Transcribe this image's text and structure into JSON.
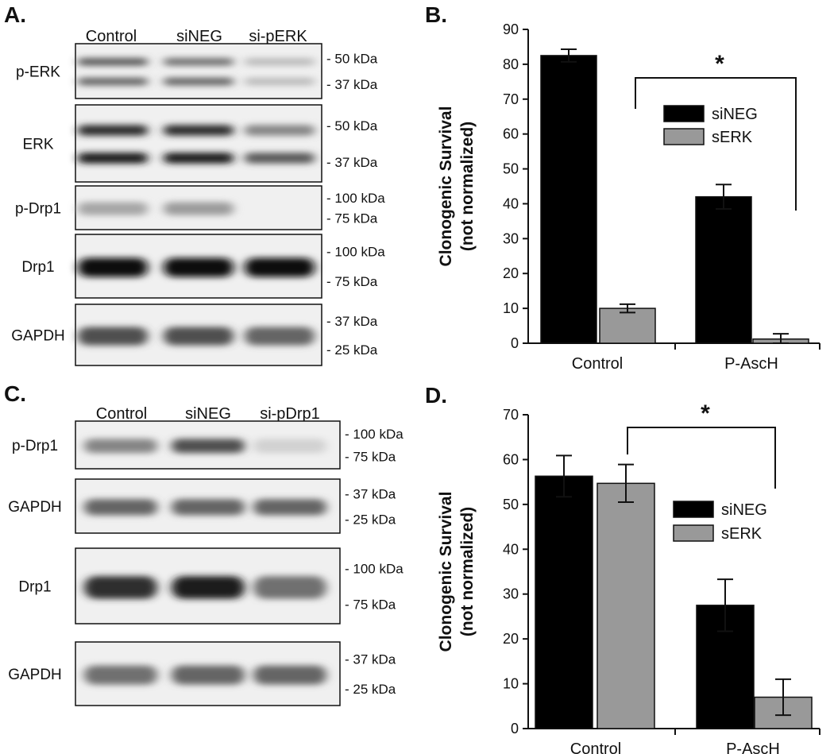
{
  "panels": {
    "A": {
      "letter": "A.",
      "lanes": [
        "Control",
        "siNEG",
        "si-pERK"
      ],
      "blots": [
        {
          "label": "p-ERK",
          "markers": [
            "- 50 kDa",
            "- 37 kDa"
          ],
          "bands": [
            [
              0.65,
              0.6
            ],
            [
              0.55,
              0.6
            ],
            [
              0.2,
              0.2
            ]
          ]
        },
        {
          "label": "ERK",
          "markers": [
            "- 50 kDa",
            "- 37 kDa"
          ],
          "bands": [
            [
              0.85,
              0.95
            ],
            [
              0.85,
              0.95
            ],
            [
              0.45,
              0.65
            ]
          ]
        },
        {
          "label": "p-Drp1",
          "markers": [
            "- 100 kDa",
            "- 75 kDa"
          ],
          "bands": [
            [
              0.3
            ],
            [
              0.35
            ],
            [
              0.0
            ]
          ]
        },
        {
          "label": "Drp1",
          "markers": [
            "- 100 kDa",
            "- 75 kDa"
          ],
          "bands": [
            [
              1.0
            ],
            [
              1.0
            ],
            [
              1.0
            ]
          ]
        },
        {
          "label": "GAPDH",
          "markers": [
            "- 37 kDa",
            "- 25 kDa"
          ],
          "bands": [
            [
              0.7
            ],
            [
              0.7
            ],
            [
              0.6
            ]
          ]
        }
      ]
    },
    "B": {
      "letter": "B.",
      "ylabel_line1": "Clonogenic Survival",
      "ylabel_line2": "(not normalized)",
      "significance": "*",
      "legend": [
        {
          "name": "siNEG",
          "color": "#000000"
        },
        {
          "name": "sERK",
          "color": "#999999"
        }
      ]
    },
    "C": {
      "letter": "C.",
      "lanes": [
        "Control",
        "siNEG",
        "si-pDrp1"
      ],
      "blots": [
        {
          "label": "p-Drp1",
          "markers": [
            "- 100 kDa",
            "- 75 kDa"
          ],
          "bands": [
            [
              0.45
            ],
            [
              0.7
            ],
            [
              0.1
            ]
          ]
        },
        {
          "label": "GAPDH",
          "markers": [
            "- 37 kDa",
            "- 25 kDa"
          ],
          "bands": [
            [
              0.6
            ],
            [
              0.6
            ],
            [
              0.6
            ]
          ]
        },
        {
          "label": "Drp1",
          "markers": [
            "- 100 kDa",
            "- 75 kDa"
          ],
          "bands": [
            [
              0.85
            ],
            [
              0.95
            ],
            [
              0.55
            ]
          ]
        },
        {
          "label": "GAPDH",
          "markers": [
            "- 37 kDa",
            "- 25 kDa"
          ],
          "bands": [
            [
              0.55
            ],
            [
              0.6
            ],
            [
              0.6
            ]
          ]
        }
      ]
    },
    "D": {
      "letter": "D.",
      "ylabel_line1": "Clonogenic Survival",
      "ylabel_line2": "(not normalized)",
      "significance": "*",
      "legend": [
        {
          "name": "siNEG",
          "color": "#000000"
        },
        {
          "name": "sERK",
          "color": "#999999"
        }
      ]
    }
  },
  "chart_data": [
    {
      "type": "bar",
      "panel": "B",
      "categories": [
        "Control",
        "P-AscH"
      ],
      "series": [
        {
          "name": "siNEG",
          "values": [
            82.5,
            42
          ],
          "errors": [
            1.8,
            3.5
          ],
          "color": "#000000"
        },
        {
          "name": "sERK",
          "values": [
            10,
            1.2
          ],
          "errors": [
            1.2,
            1.5
          ],
          "color": "#999999"
        }
      ],
      "ylabel": "Clonogenic Survival (not normalized)",
      "ylim": [
        0,
        90
      ],
      "yticks": [
        0,
        10,
        20,
        30,
        40,
        50,
        60,
        70,
        80,
        90
      ],
      "legend_position": "upper-right",
      "annotation": "*"
    },
    {
      "type": "bar",
      "panel": "D",
      "categories": [
        "Control",
        "P-AscH"
      ],
      "series": [
        {
          "name": "siNEG",
          "values": [
            56.3,
            27.5
          ],
          "errors": [
            4.6,
            5.8
          ],
          "color": "#000000"
        },
        {
          "name": "sERK",
          "values": [
            54.7,
            7
          ],
          "errors": [
            4.2,
            4.0
          ],
          "color": "#999999"
        }
      ],
      "ylabel": "Clonogenic Survival (not normalized)",
      "ylim": [
        0,
        70
      ],
      "yticks": [
        0,
        10,
        20,
        30,
        40,
        50,
        60,
        70
      ],
      "legend_position": "right",
      "annotation": "*"
    }
  ]
}
